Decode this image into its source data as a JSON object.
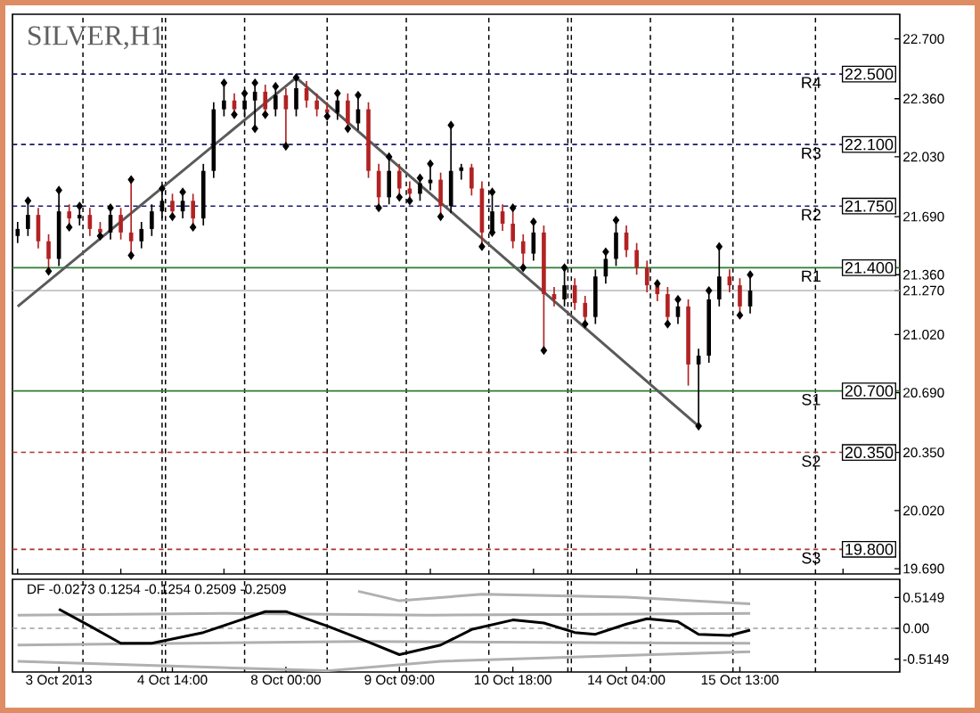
{
  "chart_data": [
    {
      "type": "candlestick",
      "title": "SILVER,H1",
      "grid": "x",
      "categories": [
        null,
        null,
        null,
        null,
        null,
        null,
        null,
        null,
        null,
        null,
        null,
        null,
        null,
        null,
        null,
        null,
        null,
        null,
        null,
        null,
        null,
        null,
        null,
        null,
        null,
        null,
        null,
        null,
        null,
        null,
        null,
        null,
        null,
        null,
        null,
        null,
        null,
        null,
        null,
        null,
        null,
        null,
        null,
        null,
        null,
        null,
        null,
        null,
        null,
        null,
        null,
        null,
        null,
        null,
        null,
        null,
        null,
        null,
        null,
        null,
        null,
        null,
        null,
        null,
        null,
        null,
        null,
        null,
        null,
        null,
        null,
        null,
        null,
        null,
        null,
        null,
        null,
        null,
        null,
        null,
        null,
        null,
        null,
        null,
        null,
        null
      ],
      "ohlc": [
        [
          21.58,
          21.66,
          21.54,
          21.62
        ],
        [
          21.62,
          21.78,
          21.58,
          21.7
        ],
        [
          21.7,
          21.74,
          21.51,
          21.55
        ],
        [
          21.55,
          21.59,
          21.38,
          21.45
        ],
        [
          21.45,
          21.84,
          21.41,
          21.72
        ],
        [
          21.72,
          21.76,
          21.63,
          21.68
        ],
        [
          21.68,
          21.75,
          21.64,
          21.7
        ],
        [
          21.7,
          21.74,
          21.58,
          21.62
        ],
        [
          21.62,
          21.66,
          21.58,
          21.6
        ],
        [
          21.6,
          21.74,
          21.56,
          21.7
        ],
        [
          21.7,
          21.74,
          21.56,
          21.6
        ],
        [
          21.6,
          21.9,
          21.47,
          21.55
        ],
        [
          21.55,
          21.66,
          21.51,
          21.62
        ],
        [
          21.62,
          21.76,
          21.58,
          21.72
        ],
        [
          21.72,
          21.85,
          21.68,
          21.78
        ],
        [
          21.78,
          21.82,
          21.69,
          21.72
        ],
        [
          21.72,
          21.83,
          21.68,
          21.78
        ],
        [
          21.78,
          21.82,
          21.63,
          21.68
        ],
        [
          21.68,
          21.99,
          21.64,
          21.95
        ],
        [
          21.95,
          22.34,
          21.91,
          22.3
        ],
        [
          22.3,
          22.45,
          22.26,
          22.35
        ],
        [
          22.35,
          22.39,
          22.27,
          22.3
        ],
        [
          22.3,
          22.39,
          22.26,
          22.35
        ],
        [
          22.35,
          22.45,
          22.19,
          22.4
        ],
        [
          22.4,
          22.44,
          22.27,
          22.3
        ],
        [
          22.3,
          22.43,
          22.26,
          22.38
        ],
        [
          22.38,
          22.42,
          22.09,
          22.3
        ],
        [
          22.3,
          22.48,
          22.26,
          22.42
        ],
        [
          22.42,
          22.46,
          22.31,
          22.35
        ],
        [
          22.35,
          22.39,
          22.26,
          22.3
        ],
        [
          22.3,
          22.34,
          22.26,
          22.28
        ],
        [
          22.28,
          22.39,
          22.24,
          22.35
        ],
        [
          22.35,
          22.39,
          22.19,
          22.22
        ],
        [
          22.22,
          22.38,
          22.18,
          22.3
        ],
        [
          22.3,
          22.34,
          21.91,
          21.95
        ],
        [
          21.95,
          21.99,
          21.74,
          21.8
        ],
        [
          21.8,
          22.03,
          21.76,
          21.95
        ],
        [
          21.95,
          21.99,
          21.8,
          21.85
        ],
        [
          21.85,
          21.89,
          21.78,
          21.82
        ],
        [
          21.82,
          21.91,
          21.78,
          21.88
        ],
        [
          21.88,
          21.99,
          21.84,
          21.9
        ],
        [
          21.9,
          21.94,
          21.69,
          21.75
        ],
        [
          21.75,
          22.21,
          21.71,
          21.95
        ],
        [
          21.95,
          21.99,
          21.9,
          21.97
        ],
        [
          21.97,
          21.99,
          21.81,
          21.85
        ],
        [
          21.85,
          21.89,
          21.52,
          21.6
        ],
        [
          21.6,
          21.83,
          21.6,
          21.72
        ],
        [
          21.72,
          21.76,
          21.61,
          21.65
        ],
        [
          21.65,
          21.74,
          21.51,
          21.55
        ],
        [
          21.55,
          21.59,
          21.4,
          21.48
        ],
        [
          21.48,
          21.66,
          21.44,
          21.6
        ],
        [
          21.6,
          21.64,
          20.93,
          21.25
        ],
        [
          21.25,
          21.29,
          21.18,
          21.22
        ],
        [
          21.22,
          21.4,
          21.18,
          21.3
        ],
        [
          21.3,
          21.34,
          21.16,
          21.2
        ],
        [
          21.2,
          21.24,
          21.08,
          21.12
        ],
        [
          21.12,
          21.39,
          21.08,
          21.35
        ],
        [
          21.35,
          21.49,
          21.31,
          21.45
        ],
        [
          21.45,
          21.67,
          21.41,
          21.6
        ],
        [
          21.6,
          21.64,
          21.46,
          21.5
        ],
        [
          21.5,
          21.54,
          21.36,
          21.4
        ],
        [
          21.4,
          21.44,
          21.26,
          21.3
        ],
        [
          21.3,
          21.31,
          21.21,
          21.25
        ],
        [
          21.25,
          21.29,
          21.08,
          21.12
        ],
        [
          21.12,
          21.22,
          21.08,
          21.18
        ],
        [
          21.18,
          21.22,
          20.73,
          20.85
        ],
        [
          20.85,
          20.94,
          20.5,
          20.9
        ],
        [
          20.9,
          21.27,
          20.86,
          21.22
        ],
        [
          21.22,
          21.52,
          21.18,
          21.35
        ],
        [
          21.35,
          21.39,
          21.26,
          21.3
        ],
        [
          21.3,
          21.34,
          21.13,
          21.18
        ],
        [
          21.18,
          21.36,
          21.14,
          21.27
        ],
        null,
        null,
        null,
        null,
        null,
        null,
        null,
        null,
        null,
        null,
        null,
        null,
        null,
        null
      ],
      "colors": [
        "#000000",
        "#000000",
        "#b22222",
        "#b22222",
        "#000000",
        "#b22222",
        "#000000",
        "#b22222",
        "#b22222",
        "#000000",
        "#b22222",
        "#b22222",
        "#000000",
        "#000000",
        "#000000",
        "#b22222",
        "#000000",
        "#b22222",
        "#000000",
        "#000000",
        "#000000",
        "#b22222",
        "#000000",
        "#000000",
        "#b22222",
        "#000000",
        "#b22222",
        "#000000",
        "#b22222",
        "#b22222",
        "#b22222",
        "#000000",
        "#b22222",
        "#000000",
        "#b22222",
        "#b22222",
        "#000000",
        "#b22222",
        "#b22222",
        "#000000",
        "#000000",
        "#b22222",
        "#000000",
        "#000000",
        "#b22222",
        "#b22222",
        "#000000",
        "#b22222",
        "#b22222",
        "#b22222",
        "#000000",
        "#b22222",
        "#b22222",
        "#000000",
        "#b22222",
        "#b22222",
        "#000000",
        "#000000",
        "#000000",
        "#b22222",
        "#b22222",
        "#b22222",
        "#b22222",
        "#b22222",
        "#000000",
        "#b22222",
        "#000000",
        "#000000",
        "#000000",
        "#b22222",
        "#b22222",
        "#000000",
        null,
        null,
        null,
        null,
        null,
        null,
        null,
        null,
        null,
        null,
        null,
        null,
        null,
        null
      ],
      "series": [
        {
          "type": "line",
          "color": "#5a5a5a",
          "values": [
            21.18,
            null,
            null,
            null,
            null,
            null,
            null,
            null,
            null,
            null,
            null,
            null,
            null,
            null,
            null,
            null,
            null,
            null,
            null,
            null,
            null,
            null,
            null,
            null,
            null,
            null,
            null,
            22.48,
            null,
            null,
            null,
            null,
            null,
            null,
            null,
            null,
            null,
            null,
            null,
            null,
            null,
            null,
            null,
            null,
            null,
            null,
            null,
            null,
            null,
            null,
            null,
            null,
            null,
            null,
            null,
            null,
            null,
            null,
            null,
            null,
            null,
            null,
            null,
            null,
            null,
            null,
            20.5,
            null,
            null,
            null,
            null,
            null,
            null,
            null,
            null,
            null,
            null,
            null,
            null,
            null,
            null,
            null,
            null,
            null,
            null,
            null
          ]
        },
        {
          "type": "scatter",
          "color": "#000000",
          "marker": "diamond",
          "values": [
            null,
            21.78,
            null,
            null,
            21.84,
            null,
            21.75,
            null,
            null,
            21.74,
            null,
            21.9,
            null,
            null,
            21.85,
            null,
            21.83,
            null,
            null,
            null,
            22.45,
            null,
            22.39,
            22.45,
            null,
            22.43,
            null,
            22.48,
            null,
            null,
            null,
            22.39,
            null,
            22.38,
            null,
            null,
            22.03,
            null,
            null,
            21.91,
            21.99,
            null,
            22.21,
            null,
            null,
            null,
            21.83,
            null,
            21.74,
            null,
            21.66,
            null,
            null,
            21.4,
            null,
            null,
            null,
            21.49,
            21.67,
            null,
            null,
            null,
            21.31,
            null,
            21.22,
            null,
            null,
            21.27,
            21.52,
            null,
            null,
            21.36,
            null,
            null,
            null,
            null,
            null,
            null,
            null,
            null,
            null,
            null,
            null,
            null,
            null,
            null
          ]
        },
        {
          "type": "scatter",
          "color": "#000000",
          "marker": "diamond",
          "values": [
            null,
            null,
            null,
            21.38,
            null,
            21.63,
            null,
            null,
            21.58,
            null,
            null,
            21.47,
            null,
            null,
            null,
            21.69,
            null,
            21.63,
            null,
            null,
            null,
            22.27,
            null,
            22.19,
            22.27,
            null,
            22.09,
            null,
            null,
            null,
            22.26,
            null,
            22.19,
            null,
            null,
            21.74,
            null,
            21.8,
            21.78,
            null,
            null,
            21.69,
            null,
            null,
            null,
            21.52,
            21.6,
            null,
            null,
            21.4,
            null,
            20.93,
            null,
            null,
            null,
            21.08,
            null,
            null,
            null,
            null,
            null,
            null,
            null,
            21.08,
            null,
            null,
            20.5,
            null,
            null,
            null,
            21.13,
            null,
            null,
            null,
            null,
            null,
            null,
            null,
            null,
            null,
            null,
            null,
            null,
            null,
            null,
            null
          ]
        }
      ],
      "ylim": [
        19.66,
        22.84
      ],
      "yticks": [
        {
          "value": 22.7,
          "label": "22.700"
        },
        {
          "value": 22.36,
          "label": "22.360"
        },
        {
          "value": 22.03,
          "label": "22.030"
        },
        {
          "value": 21.69,
          "label": "21.690"
        },
        {
          "value": 21.36,
          "label": "21.360"
        },
        {
          "value": 21.27,
          "label": "21.270"
        },
        {
          "value": 21.02,
          "label": "21.020"
        },
        {
          "value": 20.69,
          "label": "20.690"
        },
        {
          "value": 20.35,
          "label": "20.350"
        },
        {
          "value": 20.02,
          "label": "20.020"
        },
        {
          "value": 19.69,
          "label": "19.690"
        }
      ],
      "ref_lines": [
        {
          "axis": "y",
          "value": 22.5,
          "label": "R4",
          "color": "#1a1a6e",
          "line_style": "dashed"
        },
        {
          "axis": "y",
          "value": 22.1,
          "label": "R3",
          "color": "#1a1a6e",
          "line_style": "dashed"
        },
        {
          "axis": "y",
          "value": 21.75,
          "label": "R2",
          "color": "#1a1a6e",
          "line_style": "dashed"
        },
        {
          "axis": "y",
          "value": 21.4,
          "label": "R1",
          "color": "#2e7d32",
          "line_style": "solid"
        },
        {
          "axis": "y",
          "value": 20.7,
          "label": "S1",
          "color": "#2e7d32",
          "line_style": "solid"
        },
        {
          "axis": "y",
          "value": 20.35,
          "label": "S2",
          "color": "#b03030",
          "line_style": "dashed"
        },
        {
          "axis": "y",
          "value": 19.8,
          "label": "S3",
          "color": "#b03030",
          "line_style": "dashed"
        },
        {
          "axis": "y",
          "value": 21.27,
          "color": "#b8b8b8",
          "line_style": "solid"
        }
      ],
      "annotations": [
        {
          "text": "22.500",
          "y": 22.5
        },
        {
          "text": "22.100",
          "y": 22.1
        },
        {
          "text": "21.750",
          "y": 21.75
        },
        {
          "text": "21.400",
          "y": 21.4
        },
        {
          "text": "20.700",
          "y": 20.7
        },
        {
          "text": "20.350",
          "y": 20.35
        },
        {
          "text": "19.800",
          "y": 19.8
        }
      ]
    },
    {
      "type": "line",
      "title": "DF -0.0273 0.1254 -0.1254 0.2509 -0.2509",
      "grid": "x",
      "categories": [
        null,
        null,
        null,
        null,
        "3 Oct 2013",
        null,
        null,
        null,
        null,
        null,
        null,
        null,
        null,
        null,
        null,
        "4 Oct 14:00",
        null,
        null,
        null,
        null,
        null,
        null,
        null,
        null,
        null,
        null,
        "8 Oct 00:00",
        null,
        null,
        null,
        null,
        null,
        null,
        null,
        null,
        null,
        null,
        "9 Oct 09:00",
        null,
        null,
        null,
        null,
        null,
        null,
        null,
        null,
        null,
        null,
        "10 Oct 18:00",
        null,
        null,
        null,
        null,
        null,
        null,
        null,
        null,
        null,
        null,
        "14 Oct 04:00",
        null,
        null,
        null,
        null,
        null,
        null,
        null,
        null,
        null,
        null,
        "15 Oct 13:00",
        null,
        null,
        null,
        null,
        null,
        null,
        null,
        null,
        null,
        null,
        null,
        null,
        null,
        null,
        null
      ],
      "series": [
        {
          "color": "#b0b0b0",
          "values": [
            null,
            null,
            null,
            null,
            null,
            null,
            null,
            null,
            null,
            null,
            null,
            null,
            null,
            null,
            null,
            null,
            null,
            null,
            null,
            null,
            null,
            null,
            null,
            null,
            null,
            null,
            null,
            null,
            null,
            null,
            null,
            null,
            null,
            0.62,
            null,
            null,
            null,
            0.46,
            null,
            null,
            null,
            null,
            null,
            null,
            null,
            0.57,
            null,
            null,
            null,
            null,
            null,
            null,
            null,
            null,
            null,
            null,
            null,
            null,
            null,
            0.52,
            null,
            null,
            null,
            null,
            null,
            null,
            null,
            null,
            null,
            null,
            null,
            0.41,
            null,
            null,
            null,
            null,
            null,
            null,
            null,
            null,
            null,
            null,
            null,
            null,
            null,
            null
          ]
        },
        {
          "color": "#b0b0b0",
          "values": [
            0.22,
            null,
            null,
            null,
            null,
            null,
            null,
            null,
            null,
            null,
            null,
            null,
            null,
            null,
            null,
            null,
            null,
            null,
            null,
            null,
            0.25,
            null,
            null,
            null,
            null,
            null,
            null,
            null,
            null,
            null,
            null,
            null,
            null,
            null,
            null,
            null,
            null,
            null,
            null,
            null,
            0.22,
            null,
            null,
            null,
            null,
            null,
            null,
            null,
            null,
            null,
            null,
            null,
            null,
            null,
            null,
            null,
            null,
            null,
            null,
            null,
            null,
            null,
            null,
            null,
            null,
            null,
            null,
            null,
            null,
            null,
            null,
            0.25,
            null,
            null,
            null,
            null,
            null,
            null,
            null,
            null,
            null,
            null,
            null,
            null,
            null,
            null
          ]
        },
        {
          "color": "#b0b0b0",
          "values": [
            -0.28,
            null,
            null,
            null,
            null,
            null,
            null,
            null,
            null,
            null,
            null,
            null,
            null,
            null,
            null,
            null,
            null,
            null,
            null,
            null,
            null,
            null,
            null,
            null,
            null,
            null,
            null,
            null,
            null,
            null,
            null,
            null,
            null,
            -0.22,
            null,
            null,
            null,
            null,
            null,
            null,
            null,
            null,
            null,
            null,
            null,
            null,
            null,
            null,
            null,
            null,
            null,
            null,
            null,
            null,
            null,
            null,
            null,
            null,
            null,
            null,
            null,
            null,
            null,
            null,
            null,
            null,
            null,
            null,
            null,
            null,
            null,
            -0.25,
            null,
            null,
            null,
            null,
            null,
            null,
            null,
            null,
            null,
            null,
            null,
            null,
            null,
            null
          ]
        },
        {
          "color": "#b0b0b0",
          "values": [
            -0.55,
            null,
            null,
            null,
            null,
            null,
            null,
            null,
            null,
            null,
            null,
            null,
            null,
            null,
            null,
            null,
            null,
            null,
            null,
            null,
            null,
            null,
            null,
            null,
            null,
            null,
            null,
            null,
            null,
            null,
            -0.71,
            null,
            null,
            null,
            null,
            null,
            null,
            null,
            null,
            null,
            null,
            -0.55,
            null,
            null,
            null,
            null,
            null,
            null,
            null,
            null,
            null,
            null,
            null,
            null,
            null,
            null,
            null,
            null,
            null,
            null,
            null,
            null,
            null,
            null,
            null,
            null,
            null,
            null,
            null,
            null,
            null,
            -0.39,
            null,
            null,
            null,
            null,
            null,
            null,
            null,
            null,
            null,
            null,
            null,
            null,
            null,
            null
          ]
        },
        {
          "color": "#000000",
          "values": [
            null,
            null,
            null,
            null,
            0.32,
            null,
            null,
            0.04,
            null,
            null,
            -0.25,
            null,
            null,
            -0.25,
            null,
            null,
            null,
            null,
            -0.07,
            null,
            null,
            null,
            null,
            null,
            0.28,
            null,
            0.28,
            null,
            null,
            null,
            0.04,
            null,
            null,
            null,
            -0.23,
            null,
            null,
            -0.44,
            null,
            null,
            null,
            -0.28,
            null,
            null,
            -0.02,
            null,
            null,
            null,
            0.14,
            null,
            null,
            0.09,
            null,
            null,
            -0.07,
            null,
            -0.1,
            null,
            null,
            0.07,
            null,
            0.16,
            null,
            null,
            0.11,
            null,
            -0.1,
            null,
            null,
            -0.12,
            null,
            -0.03,
            null,
            null,
            null,
            null,
            null,
            null,
            null,
            null,
            null,
            null,
            null,
            null,
            null,
            null
          ]
        }
      ],
      "ylim": [
        -0.73,
        0.82
      ],
      "yticks": [
        {
          "value": 0.5149,
          "label": "0.5149"
        },
        {
          "value": 0,
          "label": "0.00"
        },
        {
          "value": -0.5149,
          "label": "-0.5149"
        }
      ],
      "ref_lines": [
        {
          "axis": "y",
          "value": 0,
          "color": "#a0a0a0",
          "line_style": "dashed"
        }
      ]
    }
  ]
}
